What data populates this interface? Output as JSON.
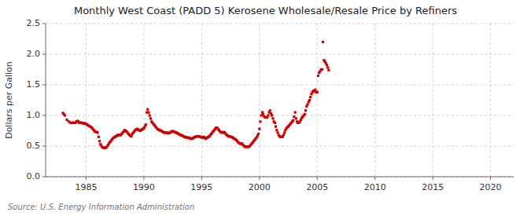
{
  "chart_data": {
    "type": "scatter",
    "title": "Monthly West Coast (PADD 5) Kerosene Wholesale/Resale Price by Refiners",
    "ylabel": "Dollars per Gallon",
    "annotation": "Source: U.S. Energy Information Administration",
    "color": "#cc0000",
    "marker": "square",
    "grid": true,
    "xlim": [
      1981.5,
      2022
    ],
    "ylim": [
      0.0,
      2.5
    ],
    "xticks": [
      1985,
      1990,
      1995,
      2000,
      2005,
      2010,
      2015,
      2020
    ],
    "yticks": [
      {
        "value": 0.0,
        "label": "0.0"
      },
      0.5,
      {
        "value": 1.0,
        "label": "1.0"
      },
      1.5,
      {
        "value": 2.0,
        "label": "2.0"
      },
      2.5
    ],
    "x": [
      1983.0,
      1983.083,
      1983.167,
      1983.333,
      1983.5,
      1983.667,
      1983.75,
      1983.833,
      1983.917,
      1984.0,
      1984.083,
      1984.167,
      1984.25,
      1984.333,
      1984.417,
      1984.5,
      1984.583,
      1984.667,
      1984.75,
      1984.833,
      1984.917,
      1985.0,
      1985.083,
      1985.167,
      1985.25,
      1985.333,
      1985.417,
      1985.5,
      1985.583,
      1985.667,
      1985.75,
      1985.833,
      1985.917,
      1986.0,
      1986.083,
      1986.167,
      1986.25,
      1986.333,
      1986.417,
      1986.5,
      1986.583,
      1986.667,
      1986.75,
      1986.833,
      1986.917,
      1987.0,
      1987.083,
      1987.167,
      1987.25,
      1987.333,
      1987.417,
      1987.5,
      1987.583,
      1987.667,
      1987.75,
      1987.833,
      1987.917,
      1988.0,
      1988.083,
      1988.167,
      1988.25,
      1988.333,
      1988.417,
      1988.5,
      1988.583,
      1988.667,
      1988.75,
      1988.833,
      1988.917,
      1989.0,
      1989.083,
      1989.167,
      1989.25,
      1989.333,
      1989.417,
      1989.5,
      1989.583,
      1989.667,
      1989.75,
      1989.833,
      1989.917,
      1990.0,
      1990.083,
      1990.167,
      1990.25,
      1990.333,
      1990.417,
      1990.5,
      1990.583,
      1990.667,
      1990.75,
      1990.833,
      1990.917,
      1991.0,
      1991.083,
      1991.167,
      1991.25,
      1991.333,
      1991.417,
      1991.5,
      1991.583,
      1991.667,
      1991.75,
      1991.833,
      1991.917,
      1992.0,
      1992.083,
      1992.167,
      1992.25,
      1992.333,
      1992.417,
      1992.5,
      1992.583,
      1992.667,
      1992.75,
      1992.833,
      1992.917,
      1993.0,
      1993.083,
      1993.167,
      1993.25,
      1993.333,
      1993.417,
      1993.5,
      1993.583,
      1993.667,
      1993.75,
      1993.833,
      1993.917,
      1994.0,
      1994.083,
      1994.167,
      1994.25,
      1994.333,
      1994.417,
      1994.5,
      1994.583,
      1994.667,
      1994.75,
      1994.833,
      1994.917,
      1995.0,
      1995.083,
      1995.167,
      1995.25,
      1995.333,
      1995.417,
      1995.5,
      1995.583,
      1995.667,
      1995.75,
      1995.833,
      1995.917,
      1996.0,
      1996.083,
      1996.167,
      1996.25,
      1996.333,
      1996.417,
      1996.5,
      1996.583,
      1996.667,
      1996.75,
      1996.833,
      1996.917,
      1997.0,
      1997.083,
      1997.167,
      1997.25,
      1997.333,
      1997.417,
      1997.5,
      1997.583,
      1997.667,
      1997.75,
      1997.833,
      1997.917,
      1998.0,
      1998.083,
      1998.167,
      1998.25,
      1998.333,
      1998.417,
      1998.5,
      1998.583,
      1998.667,
      1998.75,
      1998.833,
      1998.917,
      1999.0,
      1999.083,
      1999.167,
      1999.25,
      1999.333,
      1999.417,
      1999.5,
      1999.583,
      1999.667,
      1999.75,
      1999.833,
      1999.917,
      2000.0,
      2000.083,
      2000.167,
      2000.25,
      2000.333,
      2000.417,
      2000.5,
      2000.583,
      2000.667,
      2000.75,
      2000.833,
      2000.917,
      2001.0,
      2001.083,
      2001.167,
      2001.25,
      2001.333,
      2001.417,
      2001.5,
      2001.583,
      2001.667,
      2001.75,
      2001.833,
      2001.917,
      2002.0,
      2002.083,
      2002.167,
      2002.25,
      2002.333,
      2002.417,
      2002.5,
      2002.583,
      2002.667,
      2002.75,
      2002.833,
      2002.917,
      2003.0,
      2003.083,
      2003.167,
      2003.25,
      2003.333,
      2003.417,
      2003.5,
      2003.583,
      2003.667,
      2003.75,
      2003.833,
      2003.917,
      2004.0,
      2004.083,
      2004.167,
      2004.25,
      2004.333,
      2004.417,
      2004.5,
      2004.583,
      2004.667,
      2004.75,
      2004.833,
      2004.917,
      2005.0,
      2005.083,
      2005.167,
      2005.25,
      2005.333,
      2005.417,
      2005.5,
      2005.583,
      2005.667,
      2005.75,
      2005.833,
      2005.917,
      2006.0
    ],
    "values": [
      1.04,
      1.02,
      1.0,
      0.93,
      0.9,
      0.88,
      0.88,
      0.88,
      0.88,
      0.88,
      0.88,
      0.9,
      0.91,
      0.9,
      0.88,
      0.88,
      0.88,
      0.88,
      0.87,
      0.87,
      0.87,
      0.86,
      0.85,
      0.84,
      0.83,
      0.82,
      0.81,
      0.8,
      0.78,
      0.76,
      0.74,
      0.73,
      0.73,
      0.72,
      0.65,
      0.58,
      0.53,
      0.5,
      0.48,
      0.47,
      0.47,
      0.47,
      0.48,
      0.5,
      0.52,
      0.55,
      0.57,
      0.59,
      0.61,
      0.63,
      0.64,
      0.65,
      0.66,
      0.67,
      0.68,
      0.68,
      0.68,
      0.68,
      0.7,
      0.72,
      0.74,
      0.76,
      0.75,
      0.74,
      0.72,
      0.7,
      0.68,
      0.67,
      0.66,
      0.7,
      0.72,
      0.74,
      0.76,
      0.77,
      0.78,
      0.77,
      0.76,
      0.75,
      0.76,
      0.77,
      0.78,
      0.79,
      0.82,
      0.85,
      1.05,
      1.1,
      1.05,
      1.0,
      0.95,
      0.9,
      0.88,
      0.86,
      0.84,
      0.82,
      0.8,
      0.78,
      0.77,
      0.76,
      0.76,
      0.75,
      0.74,
      0.73,
      0.72,
      0.72,
      0.72,
      0.72,
      0.71,
      0.71,
      0.72,
      0.73,
      0.74,
      0.74,
      0.74,
      0.73,
      0.72,
      0.72,
      0.71,
      0.7,
      0.69,
      0.68,
      0.68,
      0.67,
      0.66,
      0.65,
      0.65,
      0.64,
      0.64,
      0.64,
      0.63,
      0.63,
      0.62,
      0.62,
      0.63,
      0.64,
      0.65,
      0.65,
      0.66,
      0.66,
      0.66,
      0.65,
      0.65,
      0.64,
      0.64,
      0.65,
      0.64,
      0.62,
      0.63,
      0.64,
      0.65,
      0.66,
      0.68,
      0.7,
      0.72,
      0.74,
      0.76,
      0.78,
      0.8,
      0.8,
      0.78,
      0.76,
      0.74,
      0.73,
      0.72,
      0.72,
      0.73,
      0.72,
      0.7,
      0.68,
      0.67,
      0.66,
      0.66,
      0.65,
      0.65,
      0.64,
      0.63,
      0.62,
      0.61,
      0.6,
      0.58,
      0.56,
      0.55,
      0.54,
      0.54,
      0.54,
      0.52,
      0.5,
      0.49,
      0.49,
      0.49,
      0.49,
      0.49,
      0.5,
      0.52,
      0.54,
      0.56,
      0.58,
      0.6,
      0.62,
      0.64,
      0.67,
      0.7,
      0.78,
      0.9,
      1.0,
      1.05,
      1.02,
      0.98,
      0.97,
      0.97,
      0.97,
      1.0,
      1.05,
      1.08,
      1.03,
      1.0,
      0.95,
      0.9,
      0.88,
      0.82,
      0.76,
      0.72,
      0.68,
      0.66,
      0.65,
      0.65,
      0.65,
      0.68,
      0.72,
      0.76,
      0.79,
      0.81,
      0.82,
      0.84,
      0.86,
      0.88,
      0.9,
      0.92,
      0.98,
      1.05,
      0.95,
      0.9,
      0.88,
      0.88,
      0.9,
      0.93,
      0.96,
      0.98,
      1.0,
      1.02,
      1.08,
      1.15,
      1.18,
      1.22,
      1.25,
      1.3,
      1.35,
      1.38,
      1.4,
      1.4,
      1.42,
      1.38,
      1.38,
      1.65,
      1.7,
      1.72,
      1.75,
      1.75,
      2.2,
      1.9,
      1.88,
      1.85,
      1.82,
      1.78,
      1.74
    ]
  }
}
